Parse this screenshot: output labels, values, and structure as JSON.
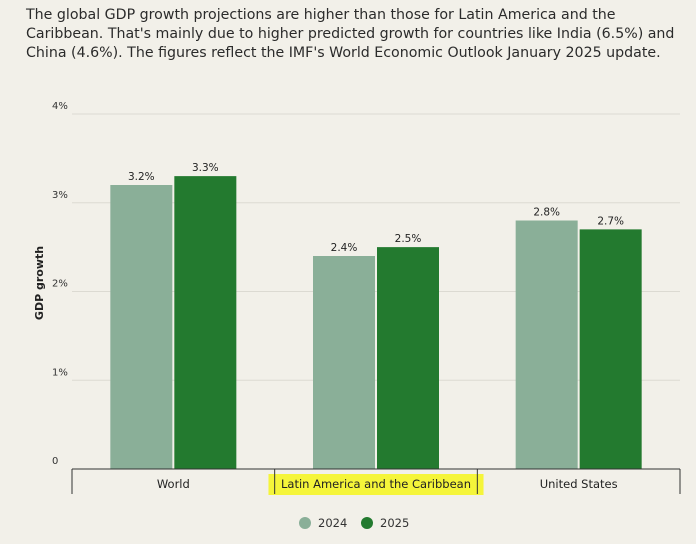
{
  "description": "The global GDP growth projections are higher than those for Latin America and the Caribbean. That's mainly due to higher predicted growth for countries like India (6.5%) and China (4.6%). The figures reflect the IMF's World Economic Outlook January 2025 update.",
  "chart_data": {
    "type": "bar",
    "title": "",
    "xlabel": "",
    "ylabel": "GDP growth",
    "ylim": [
      0,
      4
    ],
    "yticks": [
      {
        "value": 0,
        "label": "0"
      },
      {
        "value": 1,
        "label": "1%"
      },
      {
        "value": 2,
        "label": "2%"
      },
      {
        "value": 3,
        "label": "3%"
      },
      {
        "value": 4,
        "label": "4%"
      }
    ],
    "categories": [
      "World",
      "Latin America and the Caribbean",
      "United States"
    ],
    "highlighted_category": "Latin America and the Caribbean",
    "highlight_color": "#f5f53a",
    "series": [
      {
        "name": "2024",
        "color": "#8aaf98",
        "values": [
          3.2,
          2.4,
          2.8
        ],
        "labels": [
          "3.2%",
          "2.4%",
          "2.8%"
        ]
      },
      {
        "name": "2025",
        "color": "#237a2f",
        "values": [
          3.3,
          2.5,
          2.7
        ],
        "labels": [
          "3.3%",
          "2.5%",
          "2.7%"
        ]
      }
    ],
    "grid": true,
    "legend": "bottom-center"
  }
}
